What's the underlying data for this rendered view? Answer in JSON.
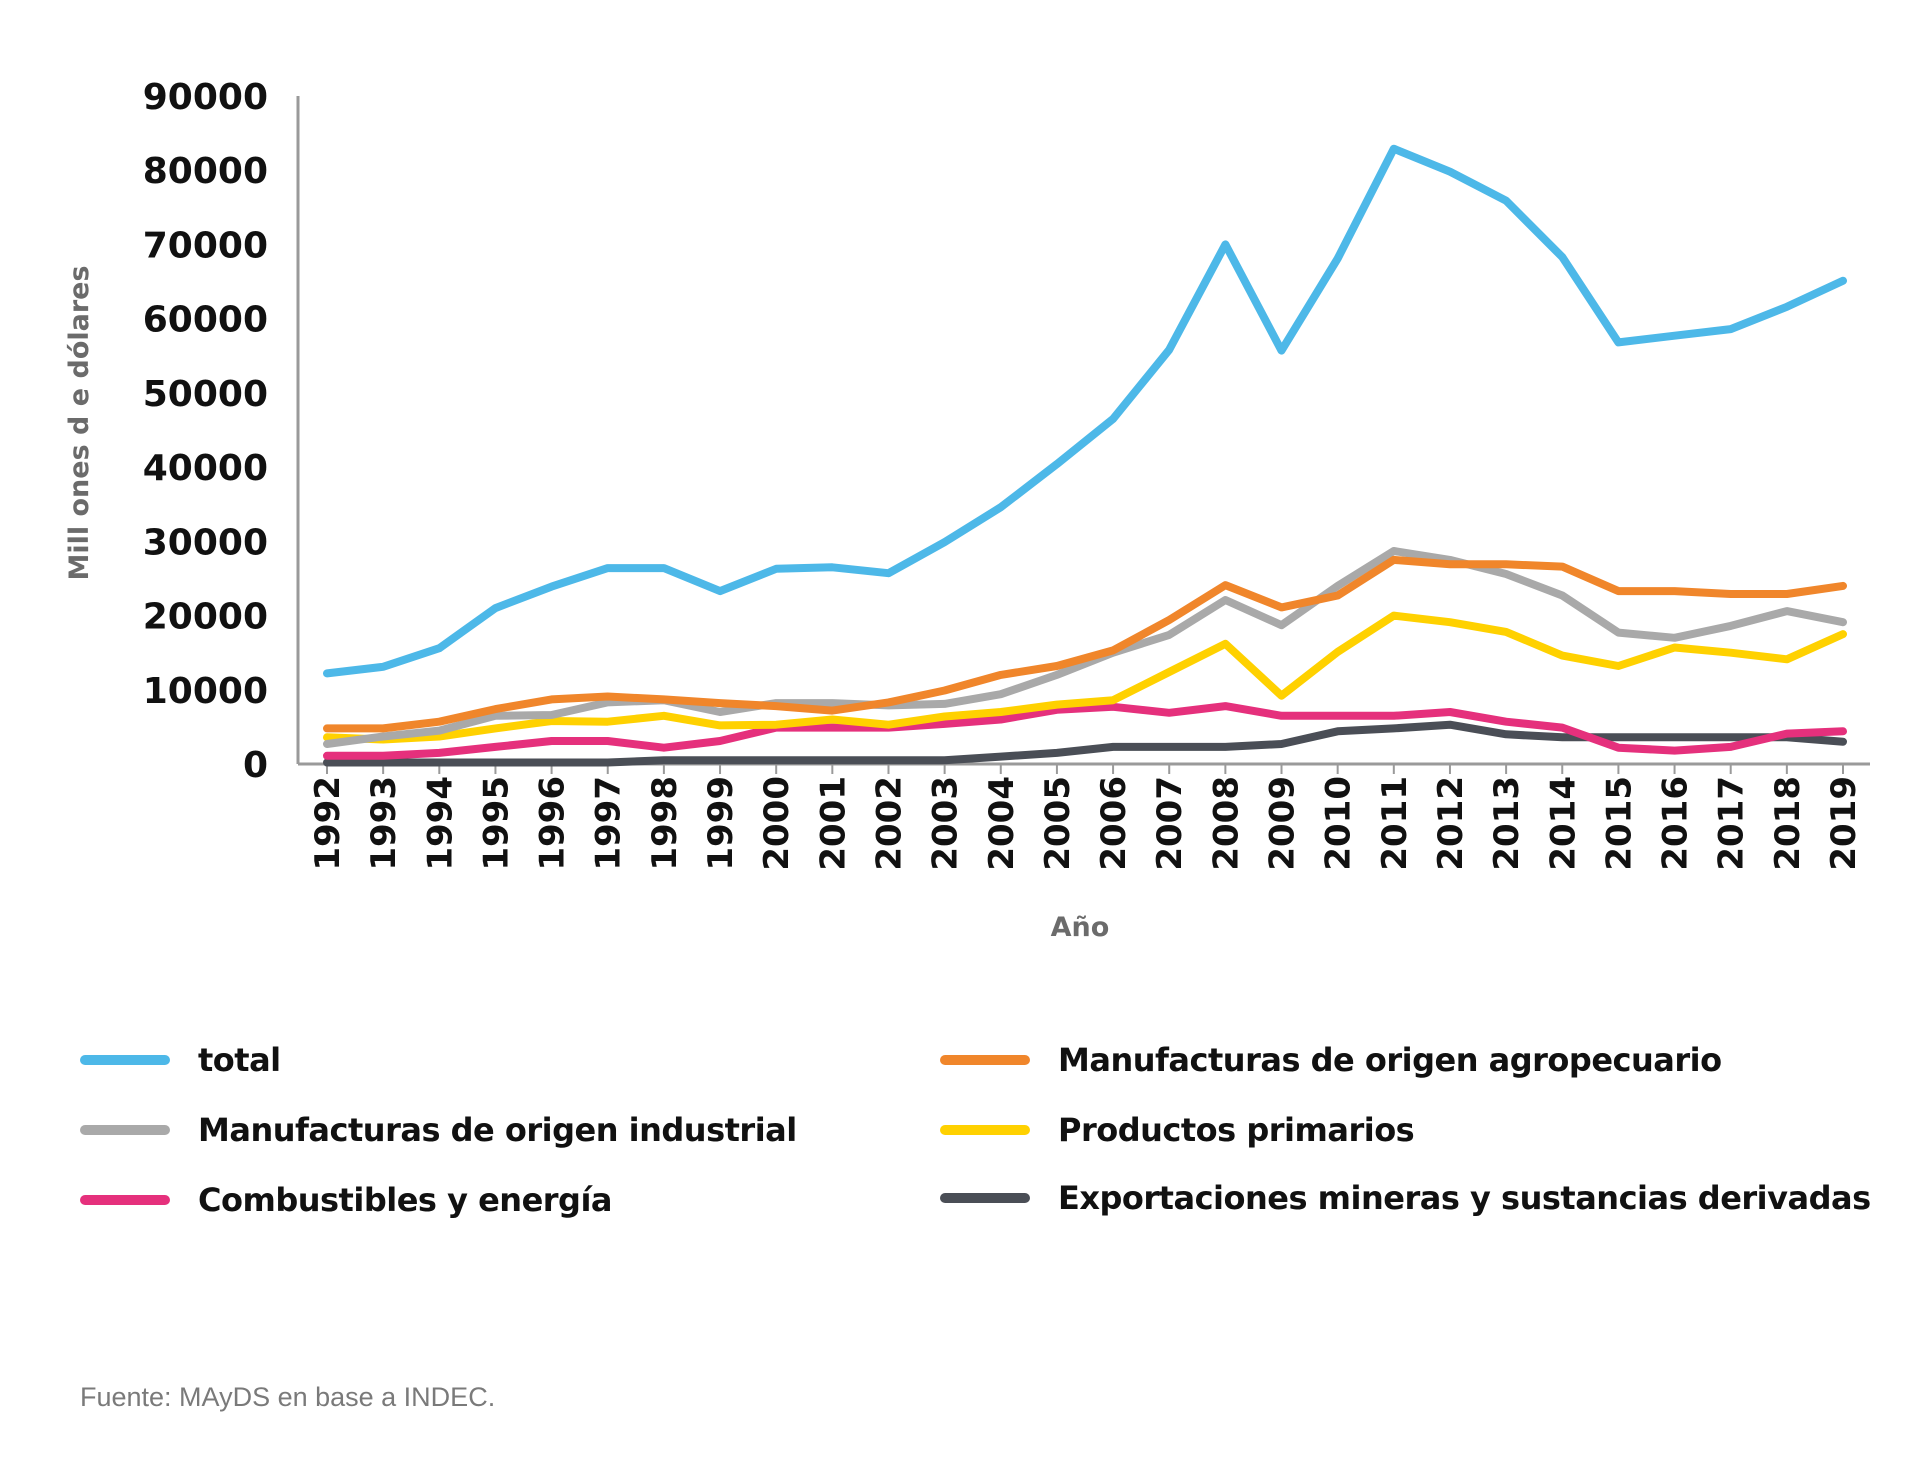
{
  "chart_data": {
    "type": "line",
    "title": "",
    "xlabel": "Año",
    "ylabel": "Mill ones d e dólares",
    "ylim": [
      0,
      90000
    ],
    "yticks": [
      "0",
      "10000",
      "20000",
      "30000",
      "40000",
      "50000",
      "60000",
      "70000",
      "80000",
      "90000"
    ],
    "categories": [
      "1992",
      "1993",
      "1994",
      "1995",
      "1996",
      "1997",
      "1998",
      "1999",
      "2000",
      "2001",
      "2002",
      "2003",
      "2004",
      "2005",
      "2006",
      "2007",
      "2008",
      "2009",
      "2010",
      "2011",
      "2012",
      "2013",
      "2014",
      "2015",
      "2016",
      "2017",
      "2018",
      "2019"
    ],
    "series": [
      {
        "name": "total",
        "color": "#4db8e8",
        "values": [
          12200,
          13100,
          15600,
          21000,
          23900,
          26400,
          26400,
          23300,
          26300,
          26500,
          25700,
          29900,
          34600,
          40400,
          46500,
          55800,
          70000,
          55700,
          68100,
          82900,
          79800,
          75900,
          68300,
          56800,
          57700,
          58600,
          61600,
          65100
        ]
      },
      {
        "name": "Manufacturas de origen agropecuario",
        "color": "#f0862b",
        "values": [
          4800,
          4800,
          5700,
          7400,
          8700,
          9100,
          8700,
          8200,
          7800,
          7200,
          8300,
          9900,
          12000,
          13200,
          15300,
          19400,
          24100,
          21100,
          22700,
          27500,
          26900,
          26900,
          26600,
          23300,
          23300,
          22900,
          22900,
          24000
        ]
      },
      {
        "name": "Manufacturas de origen industrial",
        "color": "#a9a9a9",
        "values": [
          2700,
          3700,
          4500,
          6500,
          6600,
          8300,
          8600,
          7000,
          8200,
          8200,
          7900,
          8100,
          9400,
          12000,
          15000,
          17400,
          22100,
          18700,
          24000,
          28700,
          27500,
          25600,
          22700,
          17700,
          17000,
          18600,
          20600,
          19100
        ]
      },
      {
        "name": "Productos primarios",
        "color": "#ffd100",
        "values": [
          3600,
          3300,
          3700,
          4800,
          5800,
          5700,
          6500,
          5200,
          5300,
          6000,
          5300,
          6400,
          7000,
          8000,
          8600,
          12400,
          16200,
          9200,
          15100,
          20000,
          19100,
          17800,
          14600,
          13200,
          15700,
          15000,
          14100,
          17500
        ]
      },
      {
        "name": "Combustibles y energía",
        "color": "#e5307c",
        "values": [
          1100,
          1100,
          1500,
          2300,
          3100,
          3100,
          2200,
          3100,
          4900,
          4900,
          4900,
          5400,
          6000,
          7300,
          7700,
          6900,
          7800,
          6500,
          6500,
          6500,
          7000,
          5700,
          4900,
          2200,
          1800,
          2300,
          4100,
          4400
        ]
      },
      {
        "name": "Exportaciones mineras y sustancias derivadas",
        "color": "#4a4e56",
        "values": [
          200,
          200,
          200,
          200,
          200,
          200,
          500,
          500,
          500,
          500,
          500,
          500,
          1000,
          1500,
          2300,
          2300,
          2300,
          2700,
          4400,
          4800,
          5300,
          4000,
          3600,
          3600,
          3600,
          3600,
          3600,
          3000
        ]
      }
    ]
  },
  "legend": {
    "items": [
      {
        "label": "total",
        "color": "#4db8e8"
      },
      {
        "label": "Manufacturas de origen agropecuario",
        "color": "#f0862b"
      },
      {
        "label": "Manufacturas de origen industrial",
        "color": "#a9a9a9"
      },
      {
        "label": "Productos primarios",
        "color": "#ffd100"
      },
      {
        "label": "Combustibles y energía",
        "color": "#e5307c"
      },
      {
        "label": "Exportaciones mineras y sustancias derivadas",
        "color": "#4a4e56"
      }
    ]
  },
  "source": "Fuente: MAyDS en base a  INDEC."
}
